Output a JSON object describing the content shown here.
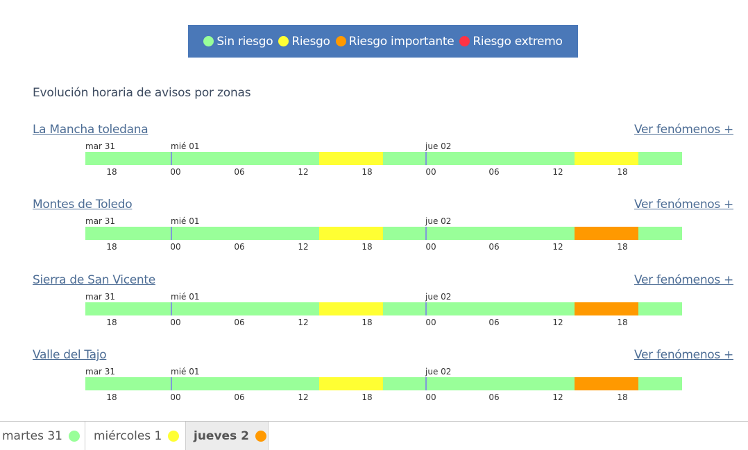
{
  "legend": [
    {
      "label": "Sin riesgo",
      "color": "#99ff99"
    },
    {
      "label": "Riesgo",
      "color": "#ffff33"
    },
    {
      "label": "Riesgo importante",
      "color": "#ff9900"
    },
    {
      "label": "Riesgo extremo",
      "color": "#ff3344"
    }
  ],
  "section_title": "Evolución horaria de avisos por zonas",
  "more_label": "Ver fenómenos +",
  "day_labels": [
    "mar 31",
    "mié 01",
    "jue 02"
  ],
  "hour_labels": [
    "18",
    "00",
    "06",
    "12",
    "18",
    "00",
    "06",
    "12",
    "18"
  ],
  "zones": [
    {
      "name": "La Mancha toledana",
      "segments": [
        {
          "level": "Sin riesgo",
          "color": "#99ff99"
        },
        {
          "level": "Riesgo",
          "color": "#ffff33"
        },
        {
          "level": "Sin riesgo",
          "color": "#99ff99"
        },
        {
          "level": "Riesgo",
          "color": "#ffff33"
        },
        {
          "level": "Sin riesgo",
          "color": "#99ff99"
        }
      ]
    },
    {
      "name": "Montes de Toledo",
      "segments": [
        {
          "level": "Sin riesgo",
          "color": "#99ff99"
        },
        {
          "level": "Riesgo",
          "color": "#ffff33"
        },
        {
          "level": "Sin riesgo",
          "color": "#99ff99"
        },
        {
          "level": "Riesgo importante",
          "color": "#ff9900"
        },
        {
          "level": "Sin riesgo",
          "color": "#99ff99"
        }
      ]
    },
    {
      "name": "Sierra de San Vicente",
      "segments": [
        {
          "level": "Sin riesgo",
          "color": "#99ff99"
        },
        {
          "level": "Riesgo",
          "color": "#ffff33"
        },
        {
          "level": "Sin riesgo",
          "color": "#99ff99"
        },
        {
          "level": "Riesgo importante",
          "color": "#ff9900"
        },
        {
          "level": "Sin riesgo",
          "color": "#99ff99"
        }
      ]
    },
    {
      "name": "Valle del Tajo",
      "segments": [
        {
          "level": "Sin riesgo",
          "color": "#99ff99"
        },
        {
          "level": "Riesgo",
          "color": "#ffff33"
        },
        {
          "level": "Sin riesgo",
          "color": "#99ff99"
        },
        {
          "level": "Riesgo importante",
          "color": "#ff9900"
        },
        {
          "level": "Sin riesgo",
          "color": "#99ff99"
        }
      ]
    }
  ],
  "tabs": [
    {
      "label": "martes 31",
      "color": "#99ff99",
      "active": false
    },
    {
      "label": "miércoles 1",
      "color": "#ffff33",
      "active": false
    },
    {
      "label": "jueves 2",
      "color": "#ff9900",
      "active": true
    }
  ]
}
